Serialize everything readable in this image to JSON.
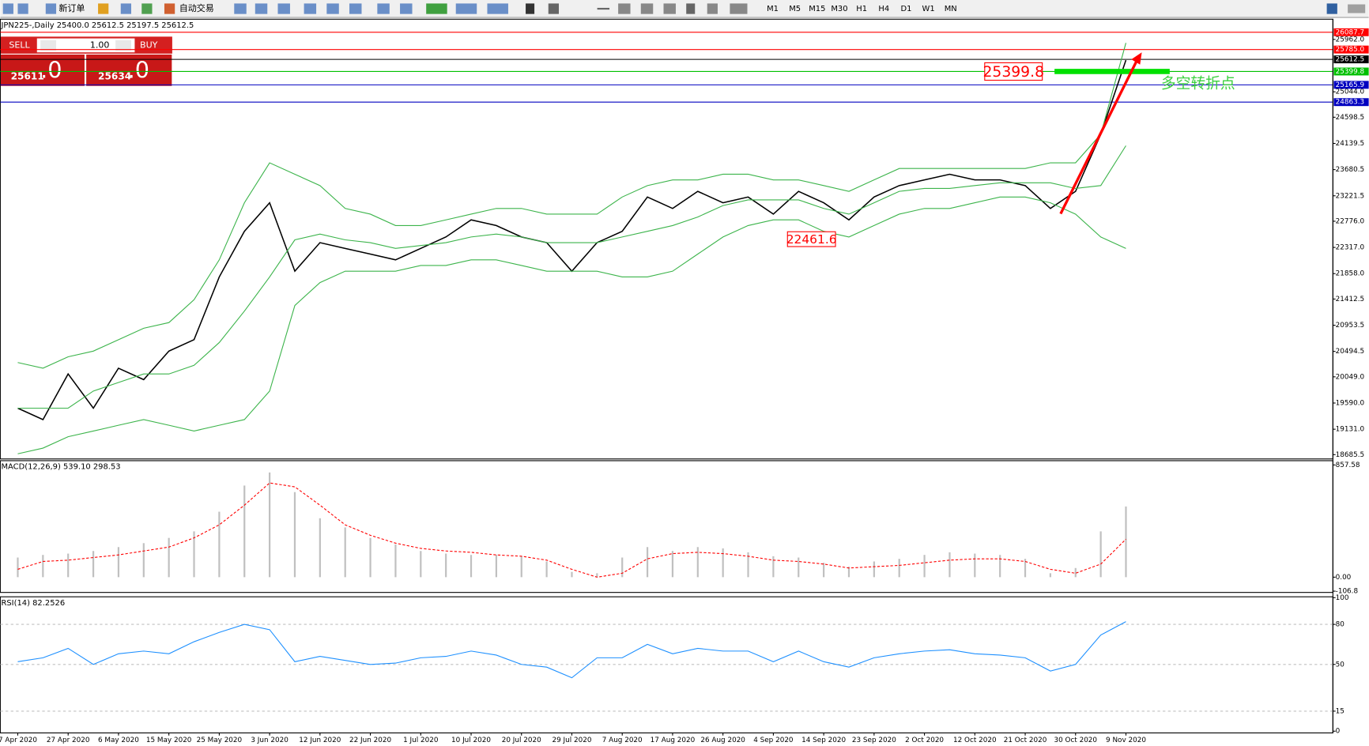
{
  "toolbar": {
    "buttons": [
      "新订单",
      "自动交易"
    ],
    "timeframes": [
      "M1",
      "M5",
      "M15",
      "M30",
      "H1",
      "H4",
      "D1",
      "W1",
      "MN"
    ]
  },
  "trade_panel": {
    "sell": "SELL",
    "buy": "BUY",
    "lots": "1.00",
    "bid_main": "25611",
    "bid_frac": ".0",
    "ask_main": "25634",
    "ask_frac": ".0"
  },
  "chart_data": [
    {
      "type": "line",
      "title": "JPN225-,Daily  25400.0 25612.5 25197.5 25612.5",
      "categories": [
        "7 Apr 2020",
        null,
        "27 Apr 2020",
        null,
        "6 May 2020",
        null,
        "15 May 2020",
        null,
        "25 May 2020",
        null,
        "3 Jun 2020",
        null,
        "12 Jun 2020",
        null,
        "22 Jun 2020",
        null,
        "1 Jul 2020",
        null,
        "10 Jul 2020",
        null,
        "20 Jul 2020",
        null,
        "29 Jul 2020",
        null,
        "7 Aug 2020",
        null,
        "17 Aug 2020",
        null,
        "26 Aug 2020",
        null,
        "4 Sep 2020",
        null,
        "14 Sep 2020",
        null,
        "23 Sep 2020",
        null,
        "2 Oct 2020",
        null,
        "12 Oct 2020",
        null,
        "21 Oct 2020",
        null,
        "30 Oct 2020",
        null,
        "9 Nov 2020"
      ],
      "series": [
        {
          "color": "#000000",
          "values": [
            19500,
            19300,
            20100,
            19500,
            20200,
            20000,
            20500,
            20700,
            21800,
            22600,
            23100,
            21900,
            22400,
            22300,
            22200,
            22100,
            22300,
            22500,
            22800,
            22700,
            22500,
            22400,
            21900,
            22400,
            22600,
            23200,
            23000,
            23300,
            23100,
            23200,
            22900,
            23300,
            23100,
            22800,
            23200,
            23400,
            23500,
            23600,
            23500,
            23500,
            23400,
            23000,
            23300,
            24300,
            25600
          ]
        },
        {
          "color": "#3cb44b",
          "values": [
            20300,
            20200,
            20400,
            20500,
            20700,
            20900,
            21000,
            21400,
            22100,
            23100,
            23800,
            23600,
            23400,
            23000,
            22900,
            22700,
            22700,
            22800,
            22900,
            23000,
            23000,
            22900,
            22900,
            22900,
            23200,
            23400,
            23500,
            23500,
            23600,
            23600,
            23500,
            23500,
            23400,
            23300,
            23500,
            23700,
            23700,
            23700,
            23700,
            23700,
            23700,
            23800,
            23800,
            24300,
            25900
          ]
        },
        {
          "color": "#3cb44b",
          "values": [
            19500,
            19500,
            19500,
            19800,
            19950,
            20100,
            20100,
            20250,
            20650,
            21200,
            21800,
            22450,
            22550,
            22450,
            22400,
            22300,
            22350,
            22400,
            22500,
            22550,
            22500,
            22400,
            22400,
            22400,
            22500,
            22600,
            22700,
            22850,
            23050,
            23150,
            23150,
            23150,
            23000,
            22900,
            23100,
            23300,
            23350,
            23350,
            23400,
            23450,
            23450,
            23450,
            23350,
            23400,
            24100
          ]
        },
        {
          "color": "#3cb44b",
          "values": [
            18700,
            18800,
            19000,
            19100,
            19200,
            19300,
            19200,
            19100,
            19200,
            19300,
            19800,
            21300,
            21700,
            21900,
            21900,
            21900,
            22000,
            22000,
            22100,
            22100,
            22000,
            21900,
            21900,
            21900,
            21800,
            21800,
            21900,
            22200,
            22500,
            22700,
            22800,
            22800,
            22600,
            22500,
            22700,
            22900,
            23000,
            23000,
            23100,
            23200,
            23200,
            23100,
            22900,
            22500,
            22300
          ]
        }
      ],
      "ylim": [
        18610,
        26240
      ],
      "yticks": [
        {
          "value": 25962,
          "label": "25962.0"
        },
        {
          "value": 25044,
          "label": "25044.0"
        },
        24598.5,
        24139.5,
        23680.5,
        23221.5,
        {
          "value": 22776,
          "label": "22776.0"
        },
        {
          "value": 22317,
          "label": "22317.0"
        },
        {
          "value": 21858,
          "label": "21858.0"
        },
        21412.5,
        20953.5,
        20494.5,
        {
          "value": 20049,
          "label": "20049.0"
        },
        {
          "value": 19590,
          "label": "19590.0"
        },
        {
          "value": 19131,
          "label": "19131.0"
        },
        18685.5
      ],
      "levels": [
        {
          "value": 26087.7,
          "color": "#ff0000"
        },
        {
          "value": 25785,
          "label": "25785.0",
          "color": "#ff0000"
        },
        {
          "value": 25612.5,
          "color": "#000000"
        },
        {
          "value": 25399.8,
          "color": "#00c000"
        },
        {
          "value": 25165.9,
          "color": "#0000c0"
        },
        {
          "value": 24863.3,
          "color": "#0000c0"
        }
      ],
      "markers": [
        {
          "value": 25399.8,
          "color": "#ff0000"
        },
        {
          "value": 22461.6,
          "color": "#ff0000"
        }
      ],
      "annotation": "多空转折点"
    },
    {
      "type": "macd",
      "title": "MACD(12,26,9) 539.10 298.53",
      "series": [
        {
          "color": "#c0c0c0",
          "values": [
            150,
            170,
            180,
            200,
            230,
            260,
            300,
            350,
            500,
            700,
            800,
            650,
            450,
            380,
            300,
            250,
            200,
            180,
            170,
            170,
            160,
            120,
            40,
            30,
            150,
            230,
            200,
            230,
            220,
            190,
            160,
            150,
            110,
            80,
            120,
            140,
            170,
            190,
            180,
            170,
            140,
            30,
            70,
            350,
            540
          ]
        },
        {
          "color": "#ff0000",
          "values": [
            60,
            120,
            130,
            150,
            170,
            200,
            230,
            300,
            400,
            550,
            720,
            690,
            550,
            400,
            320,
            260,
            220,
            200,
            190,
            170,
            160,
            130,
            60,
            0,
            30,
            140,
            180,
            190,
            180,
            160,
            130,
            120,
            100,
            70,
            80,
            90,
            110,
            130,
            140,
            140,
            120,
            60,
            30,
            100,
            290
          ]
        }
      ],
      "ylim": [
        -110,
        890
      ],
      "yticks": [
        857.58,
        {
          "value": 0,
          "label": "0.00"
        },
        -106.8
      ]
    },
    {
      "type": "line",
      "title": "RSI(14) 82.2526",
      "series": [
        {
          "color": "#1e90ff",
          "values": [
            52,
            55,
            62,
            50,
            58,
            60,
            58,
            67,
            74,
            80,
            76,
            52,
            56,
            53,
            50,
            51,
            55,
            56,
            60,
            57,
            50,
            48,
            40,
            55,
            55,
            65,
            58,
            62,
            60,
            60,
            52,
            60,
            52,
            48,
            55,
            58,
            60,
            61,
            58,
            57,
            55,
            45,
            50,
            72,
            82
          ]
        }
      ],
      "ylim": [
        0,
        100
      ],
      "yticks": [
        100,
        80,
        50,
        15,
        0
      ],
      "levels": [
        {
          "value": 80,
          "color": "#c0c0c0"
        },
        {
          "value": 50,
          "color": "#c0c0c0"
        },
        {
          "value": 15,
          "color": "#c0c0c0"
        }
      ]
    }
  ]
}
